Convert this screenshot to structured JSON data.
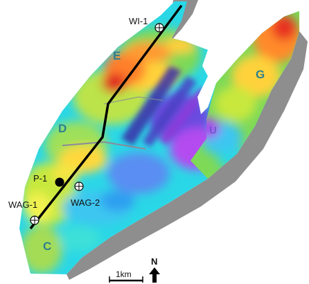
{
  "zones": {
    "e": "E",
    "d": "D",
    "c": "C",
    "g": "G",
    "u": "U"
  },
  "wells": {
    "wi1": "WI-1",
    "p1": "P-1",
    "wag1": "WAG-1",
    "wag2": "WAG-2"
  },
  "scale_bar": {
    "label": "1km"
  },
  "north_arrow": {
    "label": "N"
  },
  "colors": {
    "line": "#000000",
    "zone_label": "#2f7f8f",
    "fault": "#8a8a9a",
    "shadow": "#8c8c8c"
  }
}
